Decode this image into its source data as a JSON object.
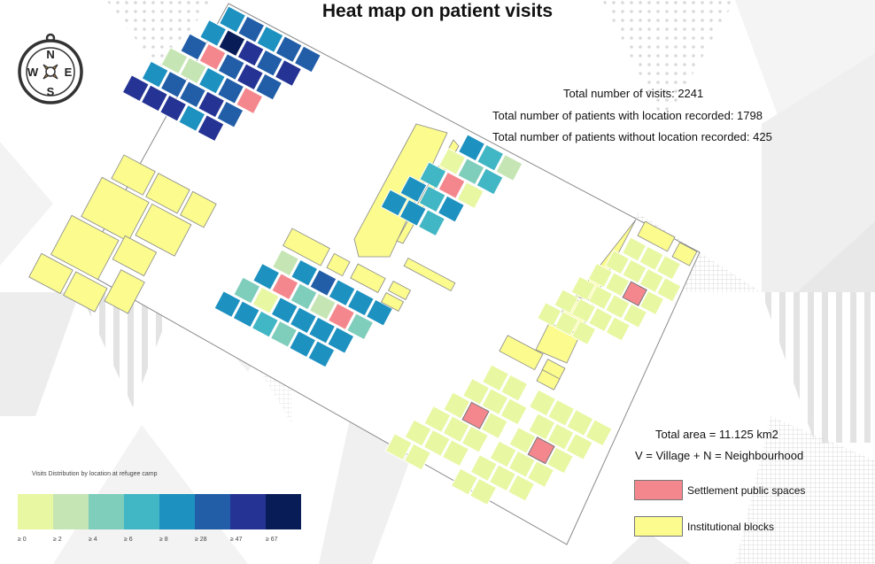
{
  "title": "Heat map on patient visits",
  "stats": {
    "total_visits": "Total number of visits: 2241",
    "with_location": "Total number of patients with location recorded: 1798",
    "without_location": "Total number of patients without location recorded: 425"
  },
  "area": {
    "total_area": "Total area = 11.125 km2",
    "definition": "V = Village + N = Neighbourhood"
  },
  "compass": {
    "north": "N",
    "south": "S",
    "east": "E",
    "west": "W",
    "icon": "compass-icon"
  },
  "scale_legend": {
    "title": "Visits Distribution by location at refugee camp",
    "colors": [
      "#e8f7a2",
      "#c6e5b4",
      "#7fcdbb",
      "#41b6c4",
      "#1d91c0",
      "#225ea8",
      "#253494",
      "#081d58"
    ],
    "labels": [
      "≥ 0",
      "≥ 2",
      "≥ 4",
      "≥ 6",
      "≥ 8",
      "≥ 28",
      "≥ 47",
      "≥ 67"
    ]
  },
  "category_legend": [
    {
      "label": "Settlement public spaces",
      "color": "#f4878d"
    },
    {
      "label": "Institutional blocks",
      "color": "#fbfb8e"
    }
  ]
}
